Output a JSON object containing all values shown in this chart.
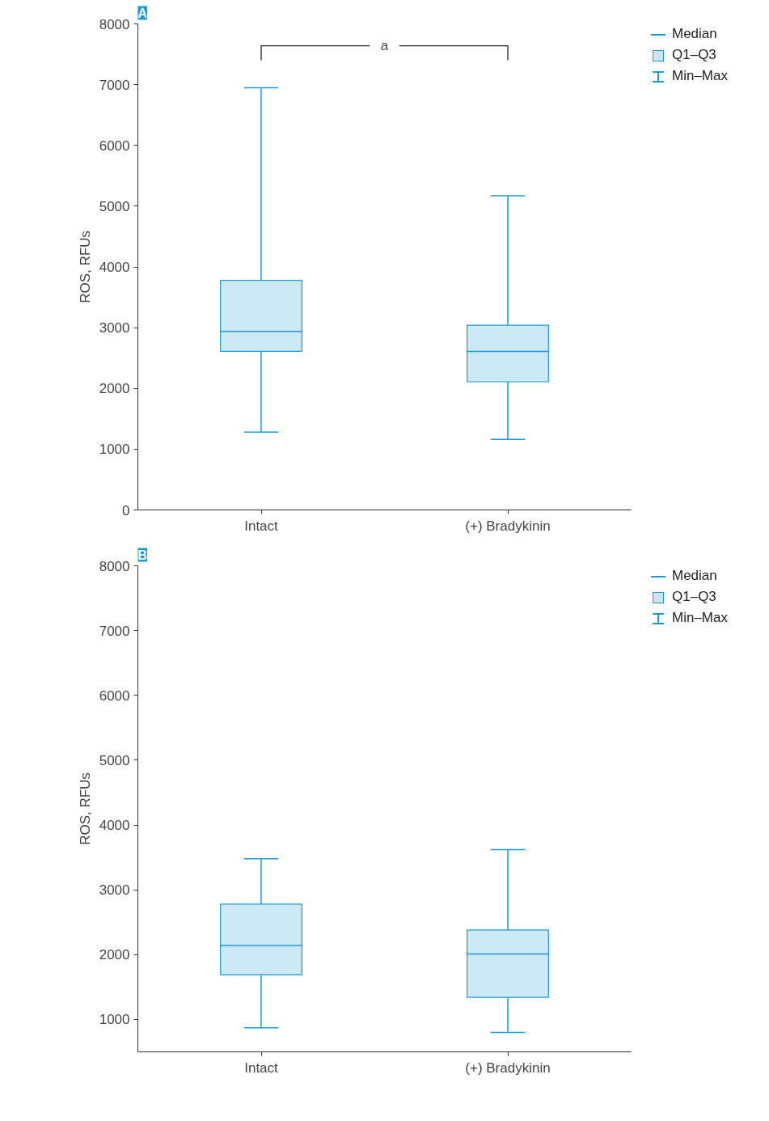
{
  "chart_data": [
    {
      "type": "box",
      "title": "A",
      "ylabel": "ROS, RFUs",
      "categories": [
        "Intact",
        "(+) Bradykinin"
      ],
      "ylim": [
        0,
        8000
      ],
      "yticks": [
        0,
        1000,
        2000,
        3000,
        4000,
        5000,
        6000,
        7000,
        8000
      ],
      "grid": false,
      "series": [
        {
          "color": "#1a9ad6",
          "boxes": [
            {
              "low": 1280,
              "q1": 2610,
              "median": 2940,
              "q3": 3780,
              "high": 6950
            },
            {
              "low": 1160,
              "q1": 2110,
              "median": 2610,
              "q3": 3040,
              "high": 5170
            }
          ]
        }
      ],
      "annotations": [
        "a",
        "Median",
        "Q1–Q3",
        "Min–Max"
      ]
    },
    {
      "type": "box",
      "title": "B",
      "ylabel": "ROS, RFUs",
      "categories": [
        "Intact",
        "(+) Bradykinin"
      ],
      "ylim": [
        500,
        8000
      ],
      "yticks": [
        1000,
        2000,
        3000,
        4000,
        5000,
        6000,
        7000,
        8000
      ],
      "grid": false,
      "series": [
        {
          "color": "#1a9ad6",
          "boxes": [
            {
              "low": 870,
              "q1": 1690,
              "median": 2140,
              "q3": 2780,
              "high": 3480
            },
            {
              "low": 800,
              "q1": 1340,
              "median": 2010,
              "q3": 2380,
              "high": 3620
            }
          ]
        }
      ],
      "annotations": [
        "Median",
        "Q1–Q3",
        "Min–Max"
      ]
    }
  ]
}
